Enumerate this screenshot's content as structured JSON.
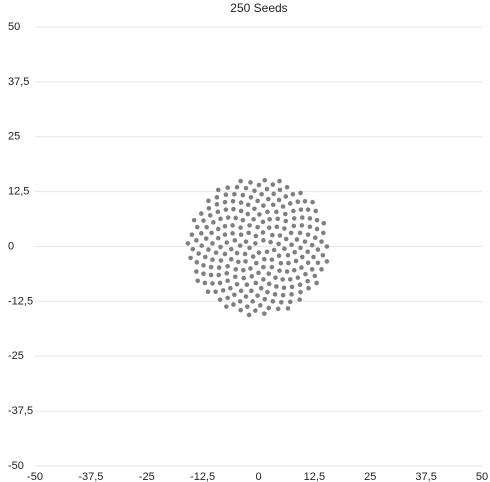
{
  "chart_data": {
    "type": "scatter",
    "title": "250 Seeds",
    "color": "#808080",
    "grid": true,
    "xlim": [
      -50,
      50
    ],
    "ylim": [
      -50,
      50
    ],
    "xticks": [
      -50,
      {
        "value": -37.5,
        "label": "-37,5"
      },
      -25,
      {
        "value": -12.5,
        "label": "-12,5"
      },
      0,
      {
        "value": 12.5,
        "label": "12,5"
      },
      25,
      {
        "value": 37.5,
        "label": "37,5"
      },
      50
    ],
    "yticks": [
      -50,
      {
        "value": -37.5,
        "label": "-37,5"
      },
      -25,
      {
        "value": -12.5,
        "label": "-12,5"
      },
      0,
      {
        "value": 12.5,
        "label": "12,5"
      },
      25,
      {
        "value": 37.5,
        "label": "37,5"
      },
      50
    ],
    "x": [
      -0.7,
      0.1,
      1.1,
      -2.0,
      1.9,
      -0.6,
      -1.2,
      2.7,
      -2.8,
      1.3,
      1.0,
      -3.0,
      3.5,
      -2.2,
      -0.5,
      3.1,
      -4.1,
      3.0,
      -0.2,
      -2.9,
      4.5,
      -3.9,
      1.1,
      2.4,
      -4.8,
      4.6,
      -2.0,
      -1.8,
      4.8,
      -5.3,
      3.0,
      1.0,
      -4.5,
      5.8,
      -4.0,
      0.0,
      4.1,
      -6.1,
      5.0,
      -1.1,
      -3.4,
      6.2,
      -5.8,
      2.3,
      2.5,
      -6.1,
      6.6,
      -3.5,
      -1.5,
      5.8,
      -7.1,
      4.7,
      0.2,
      -5.1,
      7.4,
      -5.8,
      1.1,
      4.3,
      -7.5,
      6.7,
      -2.4,
      -3.3,
      7.3,
      -7.5,
      3.8,
      2.0,
      -6.9,
      8.1,
      -5.1,
      -0.6,
      6.1,
      -8.5,
      6.4,
      -0.9,
      -5.2,
      8.6,
      -7.5,
      2.4,
      4.0,
      -8.4,
      8.4,
      -3.9,
      -2.6,
      7.9,
      -9.0,
      5.4,
      1.1,
      -7.1,
      9.4,
      -6.8,
      0.6,
      6.0,
      -9.5,
      8.0,
      -2.3,
      -4.8,
      9.3,
      -9.0,
      4.0,
      3.3,
      -8.8,
      9.8,
      -5.6,
      -1.6,
      8.0,
      -10.3,
      7.1,
      -0.2,
      -6.9,
      10.4,
      -8.5,
      2.0,
      5.5,
      -10.3,
      9.6,
      -3.9,
      -3.9,
      9.7,
      -10.5,
      5.7,
      2.2,
      -8.9,
      11.0,
      -7.3,
      -0.2,
      7.8,
      -11.2,
      8.8,
      -1.7,
      -6.3,
      11.1,
      -10.1,
      3.7,
      4.6,
      -10.6,
      11.1,
      -5.7,
      -2.8,
      9.8,
      -11.7,
      7.5,
      0.7,
      -8.6,
      12.0,
      -9.1,
      1.4,
      7.1,
      -11.9,
      10.5,
      -3.5,
      -5.4,
      11.5,
      -11.6,
      5.5,
      3.4,
      -10.6,
      12.3,
      -7.5,
      -1.3,
      9.5,
      -12.7,
      9.3,
      -0.9,
      -7.9,
      12.7,
      -10.8,
      3.2,
      6.1,
      -12.3,
      12.0,
      -5.4,
      -4.1,
      11.5,
      -12.8,
      7.4,
      1.9,
      -10.3,
      13.3,
      -9.3,
      0.4,
      8.8,
      -13.4,
      11.0,
      -2.8,
      -6.9,
      13.1,
      -12.3,
      5.1,
      4.8,
      -12.3,
      13.3,
      -7.3,
      -2.5,
      11.1,
      -13.9,
      9.4,
      0.1,
      -9.6,
      14.1,
      -11.1,
      2.3,
      7.7,
      -13.8,
      12.6,
      -4.8,
      -5.6,
      13.1,
      -13.7,
      7.1,
      3.2,
      -12.0,
      14.4,
      -9.3,
      -0.7,
      10.4,
      -14.7,
      11.2,
      -1.8,
      -8.6,
      14.5,
      -12.8,
      4.4,
      6.4,
      -13.9,
      14.1,
      -6.9,
      -4.0,
      12.8,
      -14.9,
      9.2,
      1.4,
      -11.3,
      15.3,
      -11.2,
      1.3,
      9.4,
      -15.2,
      13.0,
      -4.0,
      -7.2,
      14.6,
      -14.4,
      6.6,
      4.7,
      -13.6,
      15.3,
      -9.0,
      -2.1,
      12.1,
      -15.8
    ],
    "values": [
      0.7,
      -1.4,
      1.4,
      -0.3,
      -1.2,
      2.4,
      -2.3,
      1.0,
      1.1,
      -2.9,
      3.2,
      -1.7,
      -0.8,
      3.1,
      -3.8,
      2.6,
      0.2,
      -3.0,
      4.4,
      -3.4,
      0.6,
      2.7,
      -4.7,
      4.3,
      -1.5,
      -2.1,
      4.8,
      -5.0,
      2.5,
      1.4,
      -4.7,
      5.6,
      -3.5,
      -0.5,
      4.3,
      -6.0,
      4.5,
      -0.6,
      -3.8,
      6.2,
      -5.4,
      1.7,
      3.0,
      -6.2,
      6.2,
      -2.9,
      -2.0,
      6.0,
      -6.8,
      4.1,
      0.9,
      -5.5,
      7.3,
      -5.2,
      0.4,
      4.8,
      -7.5,
      6.3,
      -1.7,
      -3.8,
      7.4,
      -7.2,
      3.1,
      2.7,
      -7.1,
      7.9,
      -4.5,
      -1.3,
      6.5,
      -8.3,
      5.8,
      -0.1,
      -5.7,
      8.6,
      -6.9,
      1.6,
      4.6,
      -8.5,
      7.9,
      -3.2,
      -3.3,
      8.1,
      -8.7,
      4.7,
      1.9,
      -7.5,
      9.3,
      -6.1,
      -0.3,
      6.6,
      -9.5,
      7.4,
      -1.4,
      -5.4,
      9.5,
      -8.6,
      3.1,
      4.0,
      -9.1,
      9.5,
      -4.8,
      -2.4,
      8.5,
      -10.1,
      6.4,
      0.7,
      -7.5,
      10.4,
      -7.8,
      1.1,
      6.3,
      -10.4,
      9.1,
      -3.0,
      -4.8,
      10.0,
      -10.1,
      4.8,
      3.1,
      -9.4,
      10.8,
      -6.5,
      -1.2,
      8.4,
      -11.2,
      8.1,
      -0.7,
      -7.1,
      11.2,
      -9.5,
      2.7,
      5.5,
      -10.9,
      10.6,
      -4.7,
      -3.7,
      10.3,
      -11.4,
      6.6,
      1.8,
      -9.2,
      11.9,
      -8.3,
      0.3,
      7.9,
      -12.0,
      9.8,
      -2.4,
      -6.3,
      11.7,
      -11.0,
      4.5,
      4.4,
      -11.1,
      12.0,
      -6.5,
      -2.4,
      10.1,
      -12.5,
      8.4,
      0.2,
      -8.7,
      12.7,
      -10.0,
      2.0,
      7.1,
      -12.5,
      11.4,
      -4.3,
      -5.2,
      11.9,
      -12.5,
      6.4,
      3.0,
      -10.9,
      13.1,
      -8.4,
      -0.7,
      9.6,
      -13.4,
      10.2,
      -1.6,
      -7.9,
      13.3,
      -11.7,
      4.0,
      5.9,
      -12.7,
      12.9,
      -6.2,
      -3.7,
      11.8,
      -13.7,
      8.4,
      1.4,
      -10.4,
      14.0,
      -10.3,
      1.1,
      8.7,
      -14.0,
      11.9,
      -3.6,
      -6.7,
      13.5,
      -13.2,
      6.0,
      4.4,
      -12.6,
      14.1,
      -8.3,
      -2.0,
      11.2,
      -14.6,
      10.3,
      -0.6,
      -9.5,
      14.6,
      -12.1,
      3.1,
      7.5,
      -14.2,
      13.5,
      -5.7,
      -5.2,
      13.4,
      -14.5,
      8.1,
      2.7,
      -12.1,
      15.1,
      -10.3,
      0.0,
      10.4,
      -15.3,
      12.2,
      -2.6,
      -8.3,
      14.9,
      -13.7,
      5.3,
      6.0,
      -14.1,
      14.9,
      -7.8,
      -3.4,
      12.9,
      -15.6,
      10.1,
      0.7
    ]
  }
}
